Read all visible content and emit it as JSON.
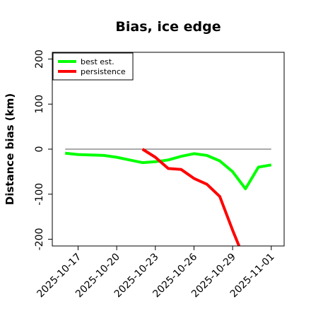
{
  "chart_data": {
    "type": "line",
    "title": "Bias, ice edge",
    "xlabel": "",
    "ylabel": "Distance bias (km)",
    "x_ticks": [
      "2025-10-17",
      "2025-10-20",
      "2025-10-23",
      "2025-10-26",
      "2025-10-29",
      "2025-11-01"
    ],
    "xlim": [
      "2025-10-15",
      "2025-11-02"
    ],
    "ylim": [
      -215,
      215
    ],
    "y_ticks": [
      -200,
      -100,
      0,
      100,
      200
    ],
    "reference_line": 0,
    "legend": {
      "position": "top-left"
    },
    "series": [
      {
        "name": "best est.",
        "color": "#00ff00",
        "x": [
          "2025-10-16",
          "2025-10-17",
          "2025-10-18",
          "2025-10-19",
          "2025-10-20",
          "2025-10-21",
          "2025-10-22",
          "2025-10-23",
          "2025-10-24",
          "2025-10-25",
          "2025-10-26",
          "2025-10-27",
          "2025-10-28",
          "2025-10-29",
          "2025-10-30",
          "2025-10-31",
          "2025-11-01"
        ],
        "y": [
          -9,
          -12,
          -13,
          -14,
          -18,
          -24,
          -30,
          -28,
          -24,
          -16,
          -10,
          -14,
          -26,
          -50,
          -88,
          -40,
          -35
        ]
      },
      {
        "name": "persistence",
        "color": "#ff0000",
        "x": [
          "2025-10-22",
          "2025-10-23",
          "2025-10-24",
          "2025-10-25",
          "2025-10-26",
          "2025-10-27",
          "2025-10-28",
          "2025-10-29",
          "2025-10-29.5"
        ],
        "y": [
          0,
          -18,
          -43,
          -45,
          -65,
          -78,
          -105,
          -180,
          -215
        ]
      }
    ]
  }
}
